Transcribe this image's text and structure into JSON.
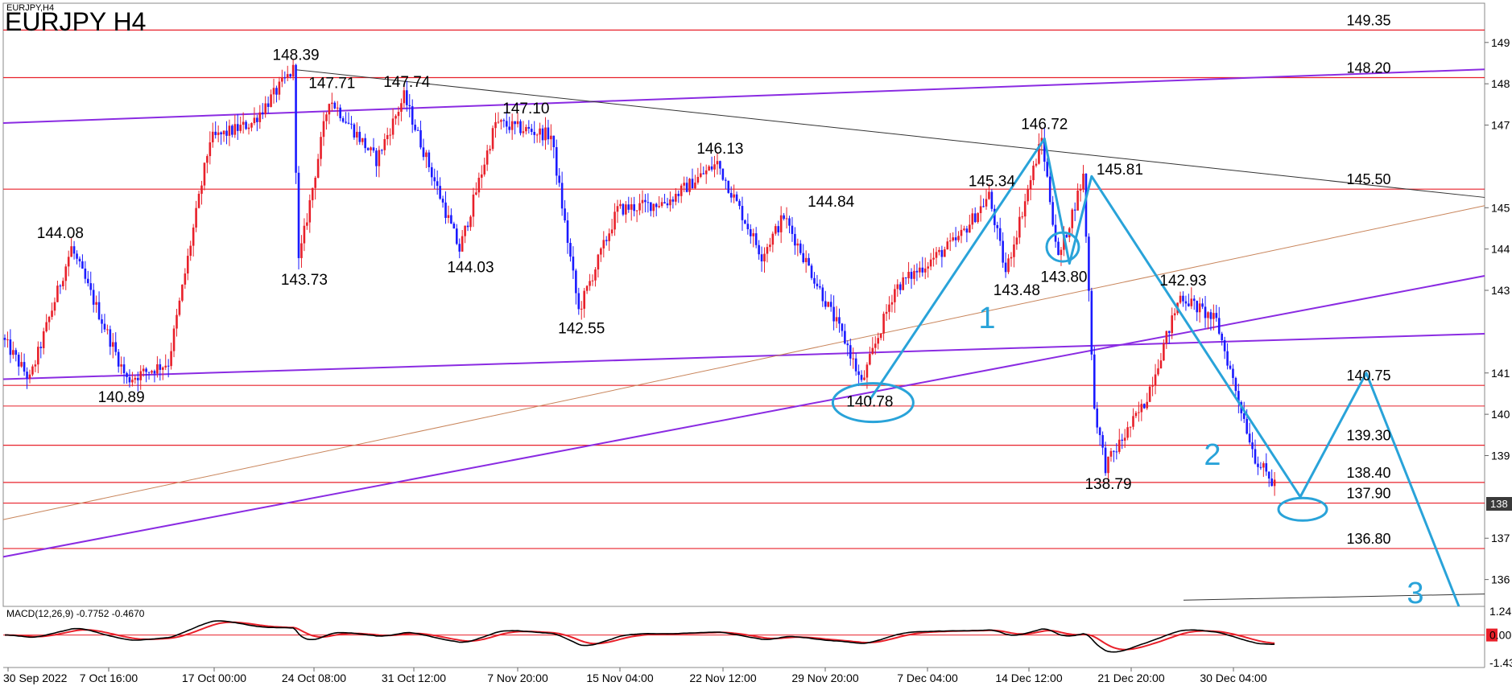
{
  "chart_data": {
    "type": "candlestick",
    "title": "EURJPY H4",
    "symbol_tab": "EURJPY,H4",
    "y_range": [
      135.4,
      150.0
    ],
    "y_ticks": [
      "149",
      "148",
      "147",
      "145",
      "144",
      "143",
      "141",
      "140",
      "139",
      "137",
      "136"
    ],
    "current_price_tag": "138",
    "x_ticks": [
      "30 Sep 2022",
      "7 Oct 16:00",
      "17 Oct 00:00",
      "24 Oct 08:00",
      "31 Oct 12:00",
      "7 Nov 20:00",
      "15 Nov 04:00",
      "22 Nov 12:00",
      "29 Nov 20:00",
      "7 Dec 04:00",
      "14 Dec 12:00",
      "21 Dec 20:00",
      "30 Dec 04:00"
    ],
    "price_path": [
      [
        0,
        141.9
      ],
      [
        10,
        140.89
      ],
      [
        25,
        144.08
      ],
      [
        45,
        140.89
      ],
      [
        60,
        141.3
      ],
      [
        75,
        146.7
      ],
      [
        90,
        147.1
      ],
      [
        105,
        148.39
      ],
      [
        107,
        143.73
      ],
      [
        118,
        147.71
      ],
      [
        135,
        146.2
      ],
      [
        145,
        147.74
      ],
      [
        165,
        144.03
      ],
      [
        178,
        147.1
      ],
      [
        198,
        146.8
      ],
      [
        208,
        142.55
      ],
      [
        222,
        145.0
      ],
      [
        240,
        145.2
      ],
      [
        258,
        146.13
      ],
      [
        274,
        143.9
      ],
      [
        282,
        144.84
      ],
      [
        305,
        141.7
      ],
      [
        310,
        140.78
      ],
      [
        322,
        143.1
      ],
      [
        345,
        144.3
      ],
      [
        356,
        145.34
      ],
      [
        362,
        143.48
      ],
      [
        375,
        146.72
      ],
      [
        381,
        143.8
      ],
      [
        390,
        145.81
      ],
      [
        394,
        140.2
      ],
      [
        398,
        138.79
      ],
      [
        412,
        140.3
      ],
      [
        425,
        142.93
      ],
      [
        438,
        142.3
      ],
      [
        452,
        139.0
      ],
      [
        458,
        138.4
      ]
    ],
    "price_labels": [
      {
        "text": "148.39",
        "price": 148.39,
        "i": 105,
        "pos": "above"
      },
      {
        "text": "147.71",
        "price": 147.71,
        "i": 118,
        "pos": "above"
      },
      {
        "text": "147.74",
        "price": 147.74,
        "i": 145,
        "pos": "above"
      },
      {
        "text": "147.10",
        "price": 147.1,
        "i": 188,
        "pos": "above"
      },
      {
        "text": "146.13",
        "price": 146.13,
        "i": 258,
        "pos": "above"
      },
      {
        "text": "146.72",
        "price": 146.72,
        "i": 375,
        "pos": "above"
      },
      {
        "text": "145.81",
        "price": 145.81,
        "i": 392,
        "pos": "right"
      },
      {
        "text": "145.34",
        "price": 145.34,
        "i": 356,
        "pos": "above"
      },
      {
        "text": "144.84",
        "price": 144.84,
        "i": 298,
        "pos": "above"
      },
      {
        "text": "144.08",
        "price": 144.08,
        "i": 20,
        "pos": "above"
      },
      {
        "text": "142.93",
        "price": 142.93,
        "i": 425,
        "pos": "above"
      },
      {
        "text": "143.73",
        "price": 143.73,
        "i": 108,
        "pos": "below"
      },
      {
        "text": "144.03",
        "price": 144.03,
        "i": 168,
        "pos": "below"
      },
      {
        "text": "142.55",
        "price": 142.55,
        "i": 208,
        "pos": "below"
      },
      {
        "text": "143.48",
        "price": 143.48,
        "i": 365,
        "pos": "below"
      },
      {
        "text": "143.80",
        "price": 143.8,
        "i": 382,
        "pos": "below"
      },
      {
        "text": "140.89",
        "price": 140.89,
        "i": 42,
        "pos": "below"
      },
      {
        "text": "140.78",
        "price": 140.78,
        "i": 312,
        "pos": "below"
      },
      {
        "text": "138.79",
        "price": 138.79,
        "i": 398,
        "pos": "below"
      }
    ],
    "levels": [
      {
        "price": 149.35,
        "label": "149.35"
      },
      {
        "price": 148.2,
        "label": "148.20"
      },
      {
        "price": 145.5,
        "label": "145.50"
      },
      {
        "price": 140.75,
        "label": "140.75"
      },
      {
        "price": 139.3,
        "label": "139.30"
      },
      {
        "price": 138.4,
        "label": "138.40"
      },
      {
        "price": 137.9,
        "label": "137.90"
      },
      {
        "price": 136.8,
        "label": "136.80"
      }
    ],
    "wave_labels": [
      "1",
      "2",
      "3"
    ],
    "macd": {
      "label": "MACD(12,26,9) -0.7752 -0.4670",
      "y_ticks": [
        "1.24",
        "0.00",
        "-1.43"
      ]
    },
    "colors": {
      "bull": "#e8202a",
      "bear": "#1a1aff",
      "level": "#e8202a",
      "trend_purple": "#8a2be2",
      "trend_brown": "#c8845a",
      "trend_black": "#333333",
      "wave": "#29a3d9",
      "signal": "#e8202a",
      "macd_line": "#000000"
    }
  }
}
